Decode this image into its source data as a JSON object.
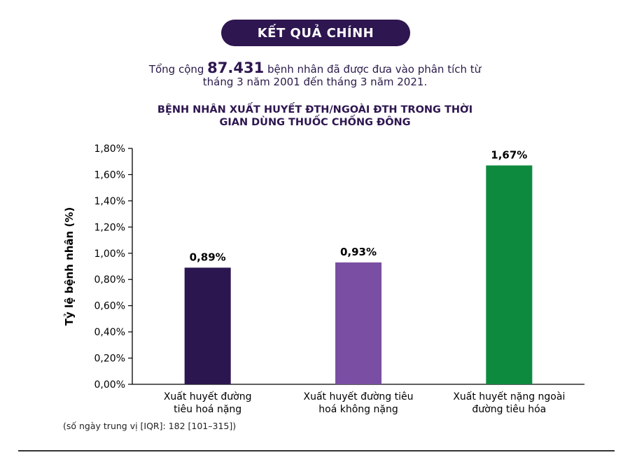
{
  "header": {
    "title": "KẾT QUẢ CHÍNH"
  },
  "summary": {
    "prefix": "Tổng cộng ",
    "count": "87.431",
    "suffix": " bệnh nhân đã được đưa vào phân tích từ",
    "line2": "tháng 3 năm 2001 đến tháng 3 năm 2021."
  },
  "footnote": "(số ngày trung vị [IQR]: 182 [101–315])",
  "chart_data": {
    "type": "bar",
    "title_lines": [
      "BỆNH NHÂN XUẤT HUYẾT ĐTH/NGOÀI ĐTH TRONG THỜI",
      "GIAN DÙNG THUỐC CHỐNG ĐÔNG"
    ],
    "ylabel": "Tỷ lệ bệnh nhân (%)",
    "xlabel": "",
    "ylim": [
      0,
      1.8
    ],
    "yticks": [
      0,
      0.2,
      0.4,
      0.6,
      0.8,
      1.0,
      1.2,
      1.4,
      1.6,
      1.8
    ],
    "ytick_labels": [
      "0,00%",
      "0,20%",
      "0,40%",
      "0,60%",
      "0,80%",
      "1,00%",
      "1,20%",
      "1,40%",
      "1,60%",
      "1,80%"
    ],
    "grid": false,
    "categories": [
      [
        "Xuất huyết đường",
        "tiêu hoá nặng"
      ],
      [
        "Xuất huyết đường tiêu",
        "hoá không nặng"
      ],
      [
        "Xuất huyết nặng ngoài",
        "đường tiêu hóa"
      ]
    ],
    "values": [
      0.89,
      0.93,
      1.67
    ],
    "value_labels": [
      "0,89%",
      "0,93%",
      "1,67%"
    ],
    "colors": [
      "#2b1650",
      "#7a4fa3",
      "#0e8a3e"
    ]
  }
}
